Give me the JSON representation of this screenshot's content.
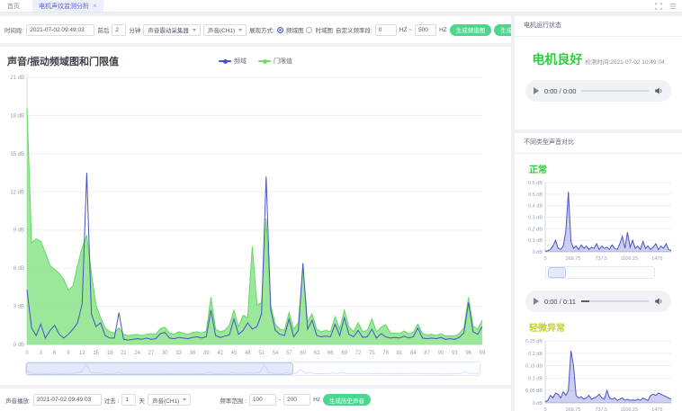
{
  "colors": {
    "accent_blue": "#4a53c9",
    "threshold_green": "#6fdb6f",
    "button_green": "#4ed68e",
    "status_green": "#2ecc40",
    "warn_yellow": "#c9cf2f"
  },
  "topbar": {
    "home": "首页",
    "active_tab": "电机声纹监测分析"
  },
  "toolbar": {
    "time_label": "时间段:",
    "time_value": "2021-07-02 09:49:03",
    "around_label": "前后",
    "around_value": "2",
    "minute_label": "分钟",
    "collector_value": "声音震动采集器",
    "channel_value": "声音(CH1)",
    "display_label": "展现方式:",
    "radio_freq_label": "频域图",
    "radio_time_label": "时域图",
    "custom_label": "自定义频率段:",
    "freq_from": "0",
    "hz_tilde": "HZ ~",
    "freq_to": "500",
    "hz": "HZ",
    "btn_chart": "生成频谱图",
    "btn_sound": "生成声音"
  },
  "chart_panel": {
    "title": "声音/振动频域图和门限值",
    "legend_freq": "频域",
    "legend_threshold": "门限值"
  },
  "datazoom": {
    "main_selection": [
      0,
      0.59
    ],
    "normal_selection": [
      0.02,
      0.18
    ]
  },
  "chart_data": [
    {
      "type": "line",
      "title": "声音/振动频域图和门限值",
      "xlabel": "",
      "ylabel": "dB",
      "legend_position": "top-center",
      "grid": true,
      "ylim": [
        0,
        21
      ],
      "ymax": 21,
      "xmax": 99,
      "yticks": [
        "21 dB",
        "18 dB",
        "15 dB",
        "12 dB",
        "9 dB",
        "6 dB",
        "3 dB",
        "0 dB"
      ],
      "xtick_values": [
        0,
        3,
        6,
        9,
        12,
        15,
        18,
        21,
        24,
        27,
        30,
        33,
        36,
        39,
        42,
        45,
        48,
        51,
        54,
        57,
        60,
        63,
        66,
        69,
        72,
        75,
        78,
        81,
        84,
        87,
        90,
        93,
        96,
        99
      ],
      "font_px": 6,
      "pad": [
        28,
        8,
        8,
        13
      ],
      "series": [
        {
          "name": "门限值",
          "color": "#62d962",
          "fill": "rgba(130,226,130,0.8)",
          "values": [
            18.6,
            8.0,
            8.3,
            8.1,
            7.2,
            6.2,
            5.9,
            5.6,
            5.1,
            4.3,
            4.6,
            6.2,
            7.6,
            8.6,
            5.6,
            3.1,
            2.1,
            1.3,
            1.0,
            0.9,
            1.3,
            0.8,
            0.7,
            0.75,
            0.8,
            0.7,
            0.8,
            0.85,
            0.8,
            1.25,
            1.35,
            0.9,
            0.8,
            1.0,
            0.9,
            0.8,
            0.95,
            1.0,
            0.9,
            1.05,
            3.7,
            1.2,
            1.0,
            1.1,
            1.5,
            2.7,
            1.4,
            2.3,
            2.1,
            7.7,
            3.1,
            3.3,
            9.9,
            3.1,
            1.6,
            1.2,
            1.1,
            2.5,
            1.2,
            1.7,
            6.1,
            1.8,
            2.4,
            1.2,
            1.0,
            1.1,
            1.0,
            2.2,
            1.2,
            2.7,
            1.4,
            1.0,
            1.7,
            1.0,
            1.1,
            2.0,
            1.0,
            1.35,
            1.55,
            0.9,
            0.9,
            0.85,
            1.05,
            0.85,
            0.95,
            1.6,
            0.85,
            0.75,
            0.8,
            0.7,
            0.85,
            0.65,
            0.7,
            0.65,
            0.85,
            1.3,
            3.7,
            1.45,
            1.2,
            1.9
          ]
        },
        {
          "name": "频域",
          "color": "#4a53c9",
          "fill": null,
          "values": [
            4.3,
            1.3,
            0.7,
            1.6,
            0.5,
            1.1,
            1.5,
            0.8,
            0.5,
            0.8,
            1.2,
            1.7,
            3.2,
            13.5,
            2.4,
            1.4,
            1.7,
            0.7,
            0.5,
            0.5,
            2.5,
            0.4,
            0.35,
            0.4,
            0.45,
            0.4,
            0.5,
            0.4,
            0.45,
            0.85,
            0.95,
            0.5,
            0.45,
            0.55,
            0.5,
            0.45,
            0.55,
            0.6,
            0.5,
            0.6,
            2.7,
            0.7,
            0.55,
            0.65,
            0.75,
            2.0,
            0.8,
            1.1,
            1.7,
            1.2,
            1.4,
            2.4,
            13.2,
            2.7,
            1.1,
            0.8,
            0.7,
            2.0,
            0.6,
            1.1,
            6.4,
            1.2,
            1.9,
            0.7,
            0.6,
            0.65,
            0.6,
            1.6,
            0.7,
            2.1,
            0.8,
            0.6,
            1.1,
            0.55,
            0.6,
            1.2,
            0.5,
            0.85,
            0.6,
            0.5,
            0.55,
            0.5,
            0.65,
            0.5,
            0.6,
            1.3,
            0.5,
            0.45,
            0.5,
            0.45,
            0.55,
            0.4,
            0.45,
            0.4,
            0.55,
            0.9,
            3.3,
            1.0,
            0.8,
            1.4
          ]
        }
      ]
    },
    {
      "type": "line",
      "title": "正常",
      "xlabel": "",
      "ylabel": "dB",
      "grid": true,
      "ylim": [
        0,
        0.6
      ],
      "ymax": 0.6,
      "xmax": 1660,
      "yticks": [
        "0.6 dB",
        "0.5 dB",
        "0.4 dB",
        "0.3 dB",
        "0.2 dB",
        "0.1 dB",
        "0 dB"
      ],
      "xtick_values": [
        0,
        368.75,
        737.5,
        1106.25,
        1475
      ],
      "font_px": 5.5,
      "pad": [
        30,
        4,
        8,
        11
      ],
      "series": [
        {
          "name": "正常",
          "color": "#4a53c9",
          "fill": "rgba(74,83,201,0.28)",
          "values": [
            0.005,
            0.01,
            0.02,
            0.05,
            0.1,
            0.03,
            0.02,
            0.05,
            0.18,
            0.52,
            0.09,
            0.03,
            0.05,
            0.02,
            0.06,
            0.03,
            0.05,
            0.02,
            0.04,
            0.03,
            0.07,
            0.02,
            0.05,
            0.03,
            0.04,
            0.02,
            0.06,
            0.03,
            0.02,
            0.07,
            0.135,
            0.03,
            0.17,
            0.04,
            0.1,
            0.03,
            0.05,
            0.02,
            0.09,
            0.03,
            0.05,
            0.02,
            0.04,
            0.07,
            0.02,
            0.05,
            0.03,
            0.07,
            0.02,
            0.01
          ]
        }
      ]
    },
    {
      "type": "line",
      "title": "轻微异常",
      "xlabel": "",
      "ylabel": "dB",
      "grid": true,
      "ylim": [
        0,
        0.25
      ],
      "ymax": 0.25,
      "xmax": 1660,
      "yticks": [
        "0.25 dB",
        "0.2 dB",
        "0.15 dB",
        "0.1 dB",
        "0.05 dB",
        "0 dB"
      ],
      "xtick_values": [
        0,
        368.75,
        737.5,
        1106.25,
        1475
      ],
      "font_px": 5.5,
      "pad": [
        30,
        4,
        8,
        11
      ],
      "series": [
        {
          "name": "轻微异常",
          "color": "#4a53c9",
          "fill": "rgba(74,83,201,0.28)",
          "values": [
            0.005,
            0.01,
            0.03,
            0.02,
            0.04,
            0.035,
            0.02,
            0.045,
            0.03,
            0.05,
            0.21,
            0.15,
            0.03,
            0.02,
            0.025,
            0.015,
            0.02,
            0.03,
            0.015,
            0.02,
            0.025,
            0.035,
            0.02,
            0.015,
            0.05,
            0.02,
            0.015,
            0.02,
            0.01,
            0.015,
            0.02,
            0.01,
            0.015,
            0.01,
            0.012,
            0.01,
            0.015,
            0.01,
            0.02,
            0.015,
            0.01,
            0.03,
            0.035,
            0.03,
            0.04,
            0.035,
            0.03,
            0.025,
            0.02,
            0.015
          ]
        }
      ]
    }
  ],
  "trend_bar": {
    "label": "声音播放:",
    "time_value": "2021-07-02 09:49:03",
    "past_label": "过去 :",
    "past_value": "1",
    "day_label": "天",
    "channel_value": "声音(CH1)",
    "range_label": "频率范围 :",
    "range_from": "100",
    "range_dash": "-",
    "range_to": "200",
    "hz": "Hz",
    "btn": "生成历史声音"
  },
  "right_panel": {
    "status_header": "电机运行状态",
    "status_text": "电机良好",
    "detect_label": "检测时间:",
    "detect_time": "2021-07-02 10:49:04",
    "player1_time": "0:00 / 0:00",
    "compare_header": "不同类型声音对比",
    "normal_title": "正常",
    "player2_time": "0:00 / 0:11",
    "slight_title": "轻微异常"
  }
}
